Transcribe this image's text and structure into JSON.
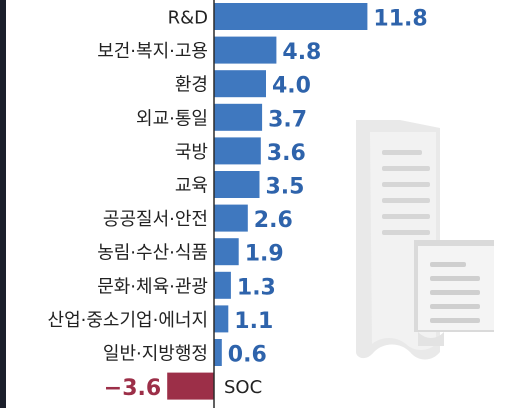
{
  "chart_data": {
    "type": "bar",
    "orientation": "horizontal",
    "categories": [
      "R&D",
      "보건·복지·고용",
      "환경",
      "외교·통일",
      "국방",
      "교육",
      "공공질서·안전",
      "농림·수산·식품",
      "문화·체육·관광",
      "산업·중소기업·에너지",
      "일반·지방행정",
      "SOC"
    ],
    "values": [
      11.8,
      4.8,
      4.0,
      3.7,
      3.6,
      3.5,
      2.6,
      1.9,
      1.3,
      1.1,
      0.6,
      -3.6
    ],
    "value_labels": [
      "11.8",
      "4.8",
      "4.0",
      "3.7",
      "3.6",
      "3.5",
      "2.6",
      "1.9",
      "1.3",
      "1.1",
      "0.6",
      "−3.6"
    ],
    "xlim": [
      -4.6,
      13
    ],
    "grid": false,
    "legend": "none",
    "colors": {
      "positive": "#3f78bf",
      "negative": "#9c2f48",
      "positive_label": "#2e63ab",
      "negative_label": "#9c2f48",
      "category_text": "#222222",
      "axis": "#2b2b2b",
      "decoration": "#dcdcdc"
    }
  },
  "decoration": {
    "icon": "document-icon"
  }
}
